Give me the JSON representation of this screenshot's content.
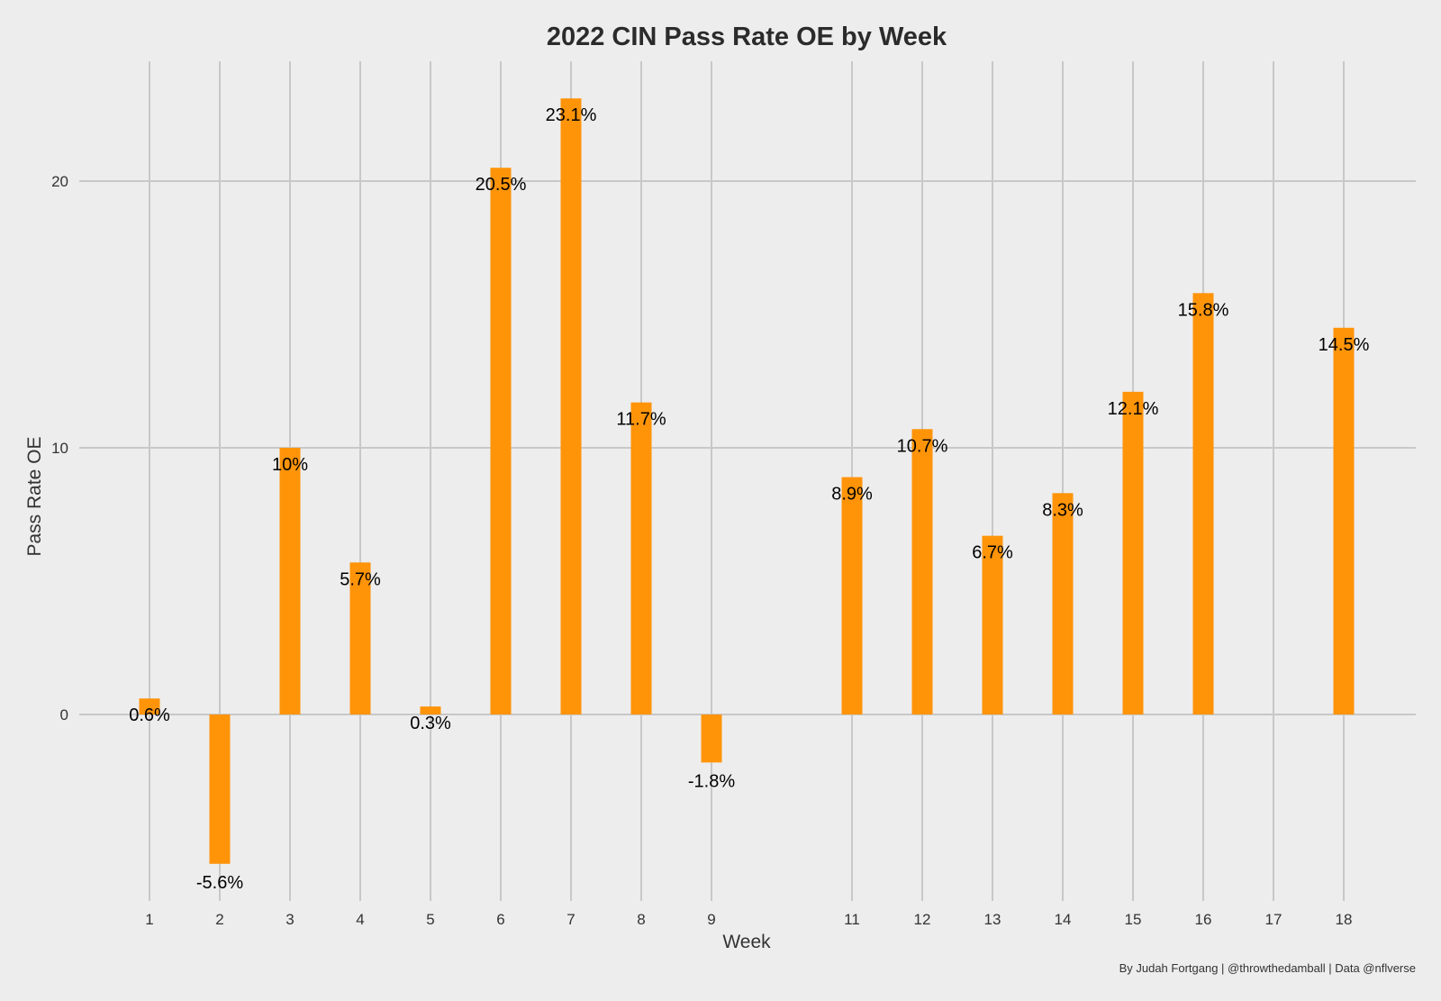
{
  "chart_data": {
    "type": "bar",
    "title": "2022 CIN Pass Rate OE by Week",
    "xlabel": "Week",
    "ylabel": "Pass Rate OE",
    "caption": "By Judah Fortgang | @throwthedamball | Data @nflverse",
    "x": [
      1,
      2,
      3,
      4,
      5,
      6,
      7,
      8,
      9,
      11,
      12,
      13,
      14,
      15,
      16,
      18
    ],
    "values": [
      0.6,
      -5.6,
      10.0,
      5.7,
      0.3,
      20.5,
      23.1,
      11.7,
      -1.8,
      8.9,
      10.7,
      6.7,
      8.3,
      12.1,
      15.8,
      14.5
    ],
    "labels": [
      "0.6%",
      "-5.6%",
      "10%",
      "5.7%",
      "0.3%",
      "20.5%",
      "23.1%",
      "11.7%",
      "-1.8%",
      "8.9%",
      "10.7%",
      "6.7%",
      "8.3%",
      "12.1%",
      "15.8%",
      "14.5%"
    ],
    "x_ticks": [
      "1",
      "2",
      "3",
      "4",
      "5",
      "6",
      "7",
      "8",
      "9",
      "11",
      "12",
      "13",
      "14",
      "15",
      "16",
      "17",
      "18"
    ],
    "y_ticks": [
      0,
      10,
      20
    ],
    "y_tick_labels": [
      "0",
      "10",
      "20"
    ],
    "ylim": [
      -7.2,
      24.5
    ],
    "grid": true,
    "legend": "none",
    "bar_color": "#ff9409"
  }
}
